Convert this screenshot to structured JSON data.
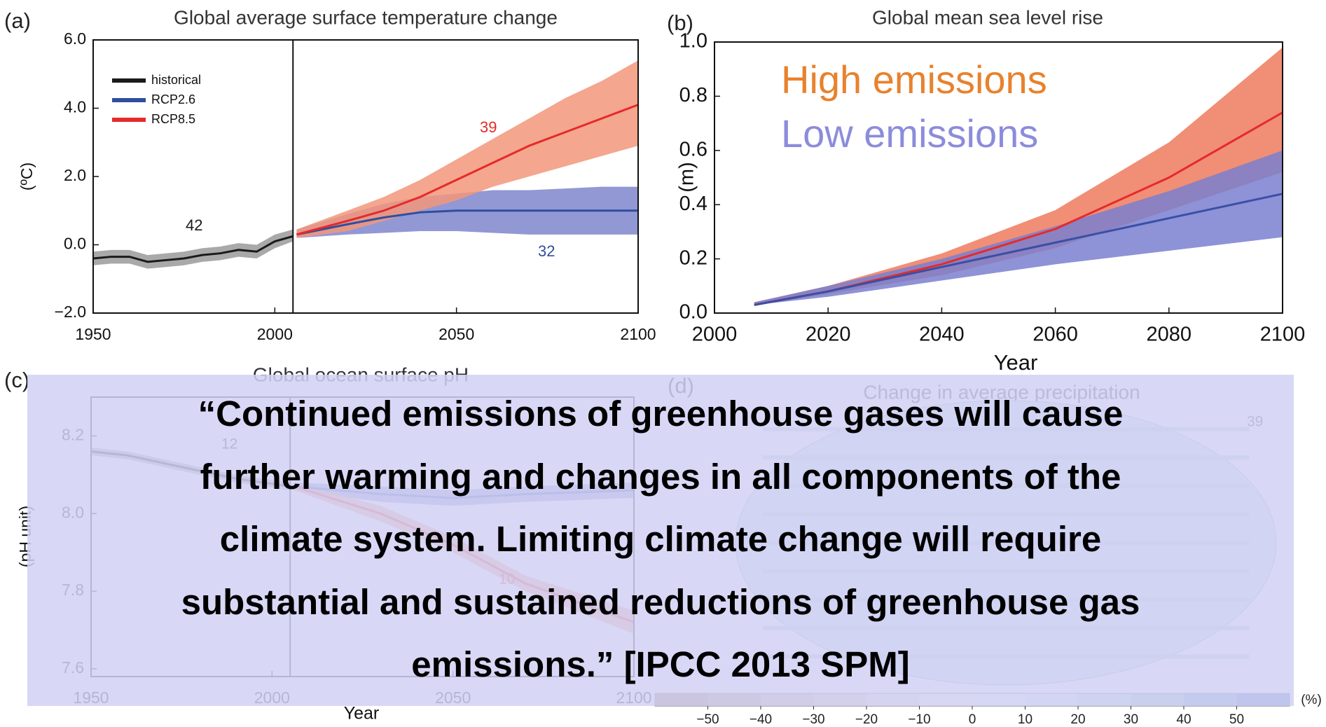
{
  "chart_data": [
    {
      "type": "line",
      "panel": "(a)",
      "title": "Global average surface temperature change",
      "ylabel": "(ºC)",
      "xlim": [
        1950,
        2100
      ],
      "xticks": [
        1950,
        2000,
        2050,
        2100
      ],
      "ylim": [
        -2,
        6
      ],
      "yticks": [
        {
          "value": 6,
          "label": "6.0"
        },
        {
          "value": 4,
          "label": "4.0"
        },
        {
          "value": 2,
          "label": "2.0"
        },
        {
          "value": 0,
          "label": "0.0"
        },
        {
          "value": -2,
          "label": "−2.0"
        }
      ],
      "vline": 2005,
      "legend": true,
      "legend_loc": "upper left",
      "series": [
        {
          "name": "historical",
          "color": "#1a1a1a",
          "band_color": "#9a9a9a",
          "x": [
            1950,
            1955,
            1960,
            1965,
            1970,
            1975,
            1980,
            1985,
            1990,
            1995,
            2000,
            2005
          ],
          "values": [
            -0.4,
            -0.35,
            -0.35,
            -0.5,
            -0.45,
            -0.4,
            -0.3,
            -0.25,
            -0.15,
            -0.2,
            0.1,
            0.25
          ],
          "lower": [
            -0.6,
            -0.55,
            -0.55,
            -0.7,
            -0.65,
            -0.6,
            -0.5,
            -0.45,
            -0.35,
            -0.4,
            -0.1,
            0.1
          ],
          "upper": [
            -0.2,
            -0.15,
            -0.15,
            -0.3,
            -0.25,
            -0.2,
            -0.1,
            -0.05,
            0.05,
            0.0,
            0.3,
            0.45
          ]
        },
        {
          "name": "RCP2.6",
          "color": "#2f4ea0",
          "band_color": "#7f86cc",
          "x": [
            2006,
            2020,
            2030,
            2040,
            2050,
            2060,
            2070,
            2080,
            2090,
            2100
          ],
          "values": [
            0.3,
            0.6,
            0.8,
            0.95,
            1.0,
            1.0,
            1.0,
            1.0,
            1.0,
            1.0
          ],
          "lower": [
            0.2,
            0.3,
            0.35,
            0.4,
            0.4,
            0.35,
            0.3,
            0.3,
            0.3,
            0.3
          ],
          "upper": [
            0.45,
            0.9,
            1.2,
            1.4,
            1.5,
            1.6,
            1.6,
            1.65,
            1.7,
            1.7
          ]
        },
        {
          "name": "RCP8.5",
          "color": "#e52a2a",
          "band_color": "#f2977a",
          "x": [
            2006,
            2020,
            2030,
            2040,
            2050,
            2060,
            2070,
            2080,
            2090,
            2100
          ],
          "values": [
            0.3,
            0.7,
            1.0,
            1.4,
            1.9,
            2.4,
            2.9,
            3.3,
            3.7,
            4.1
          ],
          "lower": [
            0.2,
            0.4,
            0.7,
            1.0,
            1.3,
            1.7,
            2.0,
            2.3,
            2.6,
            2.9
          ],
          "upper": [
            0.45,
            1.0,
            1.4,
            1.9,
            2.5,
            3.1,
            3.7,
            4.3,
            4.8,
            5.4
          ]
        }
      ],
      "annotations": [
        {
          "text": "42",
          "color": "#1a1a1a"
        },
        {
          "text": "39",
          "color": "#e52a2a"
        },
        {
          "text": "32",
          "color": "#2f4ea0"
        }
      ]
    },
    {
      "type": "line",
      "panel": "(b)",
      "title": "Global mean sea level rise",
      "ylabel": "(m)",
      "xlabel": "Year",
      "xlim": [
        2000,
        2100
      ],
      "xticks": [
        2000,
        2020,
        2040,
        2060,
        2080,
        2100
      ],
      "ylim": [
        0,
        1
      ],
      "yticks": [
        {
          "value": 0,
          "label": "0.0"
        },
        0.2,
        0.4,
        0.6,
        0.8,
        {
          "value": 1,
          "label": "1.0"
        }
      ],
      "series": [
        {
          "color": "#e52a2a",
          "band_color": "#ee7a5e",
          "x": [
            2007,
            2020,
            2040,
            2060,
            2080,
            2100
          ],
          "values": [
            0.03,
            0.08,
            0.18,
            0.31,
            0.5,
            0.74
          ],
          "lower": [
            0.03,
            0.07,
            0.14,
            0.24,
            0.38,
            0.52
          ],
          "upper": [
            0.04,
            0.1,
            0.22,
            0.38,
            0.63,
            0.98
          ]
        },
        {
          "color": "#3a4fa6",
          "band_color": "#7a7fcf",
          "x": [
            2007,
            2020,
            2040,
            2060,
            2080,
            2100
          ],
          "values": [
            0.03,
            0.08,
            0.17,
            0.26,
            0.35,
            0.44
          ],
          "lower": [
            0.03,
            0.06,
            0.12,
            0.18,
            0.23,
            0.28
          ],
          "upper": [
            0.04,
            0.1,
            0.2,
            0.32,
            0.45,
            0.6
          ]
        }
      ],
      "annotations": [
        {
          "text": "High emissions",
          "color": "#e8822d"
        },
        {
          "text": "Low emissions",
          "color": "#8c8cdc"
        }
      ]
    },
    {
      "type": "line",
      "panel": "(c)",
      "title": "Global ocean surface pH",
      "ylabel": "(pH unit)",
      "xlabel": "Year",
      "xlim": [
        1950,
        2100
      ],
      "xticks": [
        1950,
        2000,
        2050,
        2100
      ],
      "ylim": [
        7.58,
        8.3
      ],
      "yticks": [
        8.2,
        {
          "value": 8.0,
          "label": "8.0"
        },
        7.8,
        7.6
      ],
      "vline": 2005,
      "series": [
        {
          "color": "#1a1a1a",
          "band_color": "#9a9a9a",
          "x": [
            1950,
            1960,
            1970,
            1980,
            1990,
            2005
          ],
          "values": [
            8.16,
            8.15,
            8.13,
            8.11,
            8.09,
            8.07
          ],
          "lower": [
            8.15,
            8.14,
            8.12,
            8.1,
            8.08,
            8.06
          ],
          "upper": [
            8.17,
            8.16,
            8.14,
            8.12,
            8.1,
            8.08
          ]
        },
        {
          "color": "#2f4ea0",
          "band_color": "#7f86cc",
          "x": [
            2006,
            2030,
            2050,
            2070,
            2100
          ],
          "values": [
            8.07,
            8.05,
            8.04,
            8.05,
            8.06
          ],
          "lower": [
            8.06,
            8.03,
            8.02,
            8.03,
            8.04
          ],
          "upper": [
            8.08,
            8.07,
            8.06,
            8.07,
            8.08
          ]
        },
        {
          "color": "#e52a2a",
          "band_color": "#f2977a",
          "x": [
            2006,
            2030,
            2050,
            2070,
            2100
          ],
          "values": [
            8.07,
            8.0,
            7.92,
            7.82,
            7.72
          ],
          "lower": [
            8.06,
            7.98,
            7.9,
            7.8,
            7.69
          ],
          "upper": [
            8.08,
            8.02,
            7.94,
            7.84,
            7.75
          ]
        }
      ],
      "annotations": [
        {
          "text": "12",
          "color": "#1a1a1a"
        },
        {
          "text": "10",
          "color": "#e52a2a"
        }
      ]
    },
    {
      "type": "map",
      "panel": "(d)",
      "title": "Change in average precipitation",
      "colorbar": {
        "lim": [
          -60,
          60
        ],
        "unit": "(%)",
        "ticks": [
          {
            "value": -50,
            "label": "−50"
          },
          {
            "value": -40,
            "label": "−40"
          },
          {
            "value": -30,
            "label": "−30"
          },
          {
            "value": -20,
            "label": "−20"
          },
          {
            "value": -10,
            "label": "−10"
          },
          0,
          10,
          20,
          30,
          40,
          50
        ],
        "colors": [
          "#a57c5e",
          "#b89276",
          "#cbab92",
          "#dcc6b2",
          "#ebdfd4",
          "#f4efea",
          "#eef3f3",
          "#d4e9e9",
          "#b2dbdb",
          "#8cc8c8",
          "#6ea6c6",
          "#5078b4"
        ]
      },
      "annotations": [
        {
          "text": "39",
          "color": "#444444"
        }
      ]
    }
  ],
  "quote": {
    "lines": [
      "“Continued emissions of greenhouse gases will cause",
      "further warming and changes in all components of the",
      "climate system. Limiting climate change will require",
      "substantial and sustained reductions of greenhouse gas",
      "emissions.” [IPCC 2013 SPM]"
    ]
  }
}
